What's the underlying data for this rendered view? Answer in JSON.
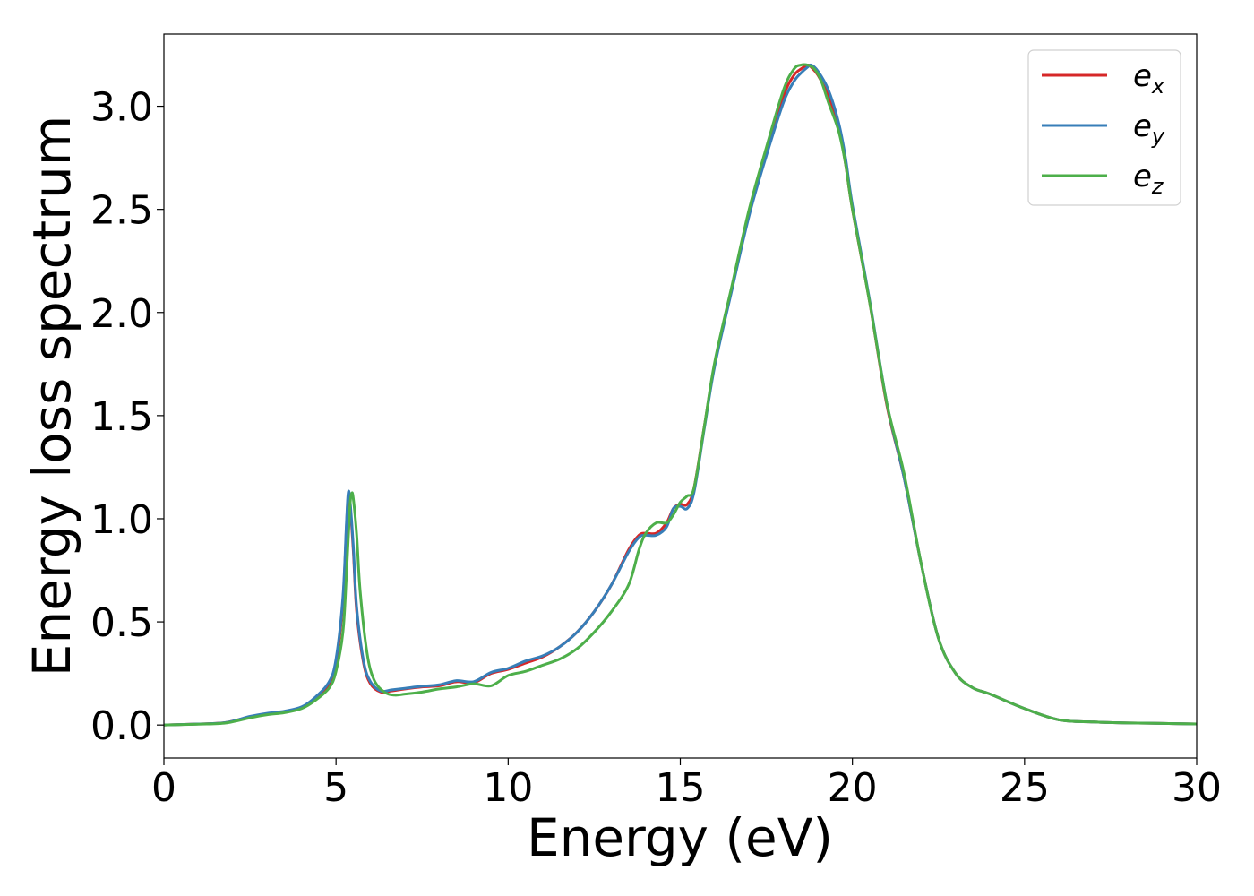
{
  "chart_data": {
    "type": "line",
    "title": "",
    "xlabel": "Energy (eV)",
    "ylabel": "Energy loss spectrum",
    "xlim": [
      0,
      30
    ],
    "ylim": [
      -0.16,
      3.35
    ],
    "xticks": [
      0,
      5,
      10,
      15,
      20,
      25,
      30
    ],
    "xtick_labels": [
      "0",
      "5",
      "10",
      "15",
      "20",
      "25",
      "30"
    ],
    "yticks": [
      0.0,
      0.5,
      1.0,
      1.5,
      2.0,
      2.5,
      3.0
    ],
    "ytick_labels": [
      "0.0",
      "0.5",
      "1.0",
      "1.5",
      "2.0",
      "2.5",
      "3.0"
    ],
    "grid": false,
    "legend": "top-right",
    "series": [
      {
        "name": "e",
        "sub": "x",
        "color": "#d62728",
        "x": [
          0,
          1,
          1.8,
          2.5,
          3.0,
          3.5,
          4.0,
          4.4,
          4.8,
          5.0,
          5.2,
          5.3,
          5.35,
          5.4,
          5.5,
          5.6,
          5.8,
          6.0,
          6.3,
          6.6,
          7.0,
          7.5,
          8.0,
          8.5,
          9.0,
          9.5,
          10.0,
          10.5,
          11.0,
          11.5,
          12.0,
          12.5,
          13.0,
          13.5,
          13.8,
          14.0,
          14.3,
          14.6,
          14.8,
          15.0,
          15.2,
          15.4,
          15.7,
          16.0,
          16.5,
          17.0,
          17.5,
          18.0,
          18.3,
          18.5,
          18.7,
          18.8,
          19.0,
          19.3,
          19.6,
          19.8,
          20.0,
          20.5,
          21.0,
          21.5,
          22.0,
          22.5,
          23.0,
          23.5,
          24.0,
          25.0,
          26.0,
          27.0,
          28.0,
          29.0,
          30.0
        ],
        "values": [
          0.0,
          0.005,
          0.012,
          0.04,
          0.055,
          0.065,
          0.085,
          0.13,
          0.2,
          0.3,
          0.6,
          0.95,
          1.1,
          1.08,
          0.85,
          0.55,
          0.3,
          0.2,
          0.16,
          0.165,
          0.175,
          0.185,
          0.19,
          0.21,
          0.205,
          0.25,
          0.27,
          0.3,
          0.33,
          0.38,
          0.45,
          0.55,
          0.68,
          0.85,
          0.92,
          0.93,
          0.93,
          0.98,
          1.05,
          1.07,
          1.07,
          1.15,
          1.45,
          1.75,
          2.12,
          2.48,
          2.78,
          3.05,
          3.15,
          3.18,
          3.2,
          3.19,
          3.15,
          3.05,
          2.9,
          2.72,
          2.5,
          2.05,
          1.55,
          1.2,
          0.78,
          0.42,
          0.25,
          0.18,
          0.15,
          0.08,
          0.025,
          0.015,
          0.01,
          0.008,
          0.005
        ]
      },
      {
        "name": "e",
        "sub": "y",
        "color": "#377eb8",
        "x": [
          0,
          1,
          1.8,
          2.5,
          3.0,
          3.5,
          4.0,
          4.4,
          4.8,
          5.0,
          5.2,
          5.3,
          5.35,
          5.4,
          5.5,
          5.6,
          5.8,
          6.0,
          6.3,
          6.6,
          7.0,
          7.5,
          8.0,
          8.5,
          9.0,
          9.5,
          10.0,
          10.5,
          11.0,
          11.5,
          12.0,
          12.5,
          13.0,
          13.5,
          13.8,
          14.0,
          14.3,
          14.6,
          14.8,
          15.0,
          15.2,
          15.4,
          15.7,
          16.0,
          16.5,
          17.0,
          17.5,
          18.0,
          18.3,
          18.5,
          18.7,
          18.8,
          19.0,
          19.3,
          19.6,
          19.8,
          20.0,
          20.5,
          21.0,
          21.5,
          22.0,
          22.5,
          23.0,
          23.5,
          24.0,
          25.0,
          26.0,
          27.0,
          28.0,
          29.0,
          30.0
        ],
        "values": [
          0.0,
          0.005,
          0.012,
          0.042,
          0.057,
          0.067,
          0.088,
          0.135,
          0.21,
          0.32,
          0.62,
          0.97,
          1.12,
          1.1,
          0.87,
          0.57,
          0.31,
          0.21,
          0.165,
          0.17,
          0.178,
          0.188,
          0.195,
          0.215,
          0.21,
          0.255,
          0.275,
          0.31,
          0.335,
          0.38,
          0.45,
          0.55,
          0.68,
          0.84,
          0.91,
          0.92,
          0.92,
          0.96,
          1.05,
          1.06,
          1.05,
          1.13,
          1.44,
          1.74,
          2.11,
          2.47,
          2.76,
          3.02,
          3.12,
          3.16,
          3.19,
          3.2,
          3.17,
          3.08,
          2.92,
          2.75,
          2.52,
          2.06,
          1.56,
          1.2,
          0.78,
          0.42,
          0.25,
          0.18,
          0.15,
          0.08,
          0.025,
          0.015,
          0.01,
          0.008,
          0.005
        ]
      },
      {
        "name": "e",
        "sub": "z",
        "color": "#4daf4a",
        "x": [
          0,
          1,
          1.8,
          2.5,
          3.0,
          3.5,
          4.0,
          4.4,
          4.8,
          5.0,
          5.2,
          5.3,
          5.4,
          5.45,
          5.5,
          5.6,
          5.7,
          5.9,
          6.1,
          6.4,
          6.7,
          7.0,
          7.5,
          8.0,
          8.5,
          9.0,
          9.5,
          10.0,
          10.5,
          11.0,
          11.5,
          12.0,
          12.5,
          13.0,
          13.5,
          13.8,
          14.0,
          14.3,
          14.6,
          14.8,
          15.0,
          15.2,
          15.4,
          15.7,
          16.0,
          16.5,
          17.0,
          17.5,
          18.0,
          18.3,
          18.5,
          18.7,
          18.9,
          19.1,
          19.3,
          19.6,
          19.8,
          20.0,
          20.5,
          21.0,
          21.5,
          22.0,
          22.5,
          23.0,
          23.5,
          24.0,
          25.0,
          26.0,
          27.0,
          28.0,
          29.0,
          30.0
        ],
        "values": [
          0.0,
          0.004,
          0.01,
          0.035,
          0.05,
          0.06,
          0.08,
          0.12,
          0.18,
          0.26,
          0.45,
          0.72,
          1.05,
          1.12,
          1.1,
          0.92,
          0.65,
          0.35,
          0.22,
          0.16,
          0.145,
          0.15,
          0.16,
          0.175,
          0.185,
          0.2,
          0.19,
          0.24,
          0.26,
          0.29,
          0.32,
          0.37,
          0.45,
          0.55,
          0.68,
          0.85,
          0.93,
          0.98,
          0.98,
          1.02,
          1.08,
          1.11,
          1.15,
          1.45,
          1.76,
          2.13,
          2.5,
          2.8,
          3.08,
          3.18,
          3.2,
          3.2,
          3.18,
          3.12,
          3.02,
          2.88,
          2.72,
          2.5,
          2.05,
          1.56,
          1.22,
          0.78,
          0.42,
          0.25,
          0.18,
          0.15,
          0.08,
          0.025,
          0.015,
          0.01,
          0.008,
          0.005
        ]
      }
    ]
  }
}
